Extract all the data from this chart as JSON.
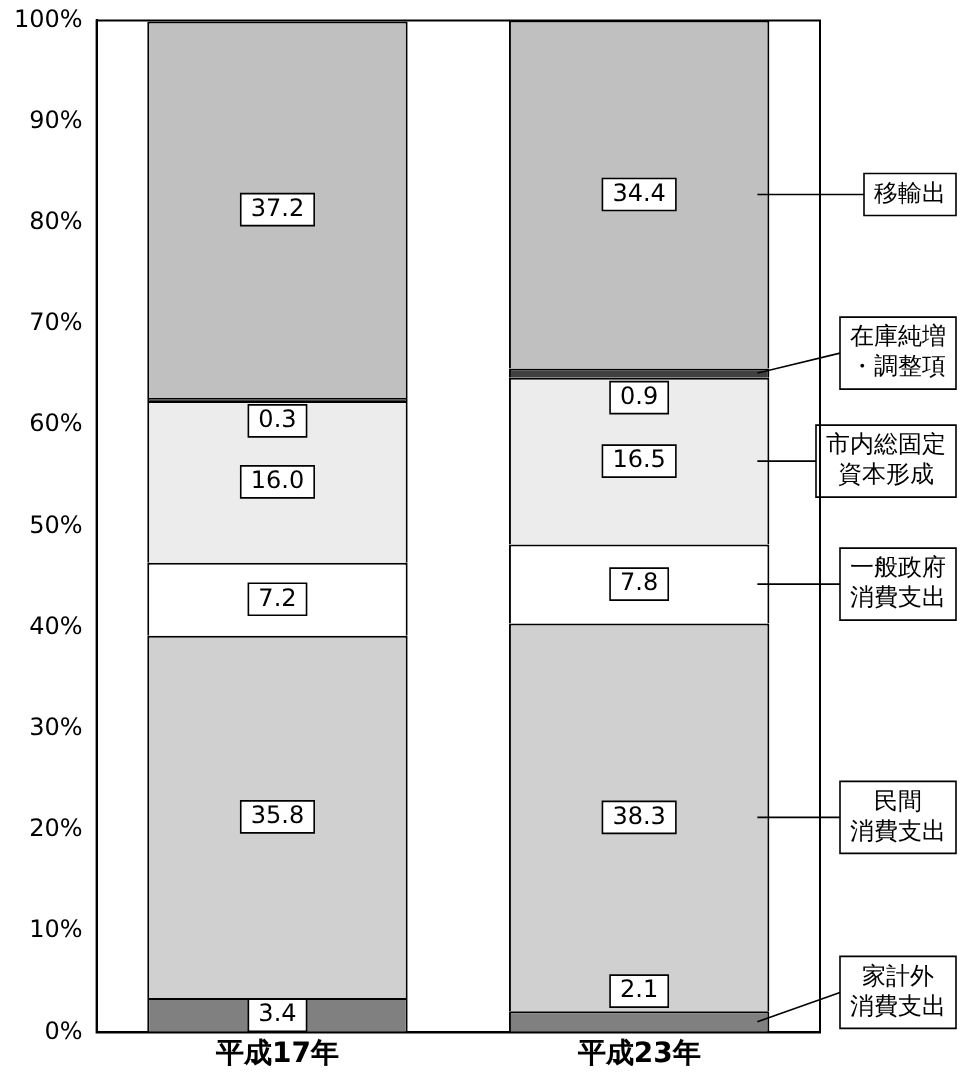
{
  "chart_data": {
    "type": "bar",
    "stacked": true,
    "categories": [
      "平成17年",
      "平成23年"
    ],
    "series": [
      {
        "name": "家計外消費支出",
        "color": "#808080",
        "values": [
          3.4,
          2.1
        ],
        "value_labels": [
          "3.4",
          "2.1"
        ]
      },
      {
        "name": "民間消費支出",
        "color": "#d0d0d0",
        "values": [
          35.8,
          38.3
        ],
        "value_labels": [
          "35.8",
          "38.3"
        ]
      },
      {
        "name": "一般政府消費支出",
        "color": "#ffffff",
        "values": [
          7.2,
          7.8
        ],
        "value_labels": [
          "7.2",
          "7.8"
        ]
      },
      {
        "name": "市内総固定資本形成",
        "color": "#ececec",
        "values": [
          16.0,
          16.5
        ],
        "value_labels": [
          "16.0",
          "16.5"
        ]
      },
      {
        "name": "在庫純増・調整項",
        "color": "#404040",
        "values": [
          0.3,
          0.9
        ],
        "value_labels": [
          "0.3",
          "0.9"
        ]
      },
      {
        "name": "移輸出",
        "color": "#c0c0c0",
        "values": [
          37.2,
          34.4
        ],
        "value_labels": [
          "37.2",
          "34.4"
        ]
      }
    ],
    "ylim": [
      0,
      100
    ],
    "yticks": [
      {
        "value": 0,
        "label": "0%"
      },
      {
        "value": 10,
        "label": "10%"
      },
      {
        "value": 20,
        "label": "20%"
      },
      {
        "value": 30,
        "label": "30%"
      },
      {
        "value": 40,
        "label": "40%"
      },
      {
        "value": 50,
        "label": "50%"
      },
      {
        "value": 60,
        "label": "60%"
      },
      {
        "value": 70,
        "label": "70%"
      },
      {
        "value": 80,
        "label": "80%"
      },
      {
        "value": 90,
        "label": "90%"
      },
      {
        "value": 100,
        "label": "100%"
      }
    ],
    "grid": false,
    "legend": false
  }
}
